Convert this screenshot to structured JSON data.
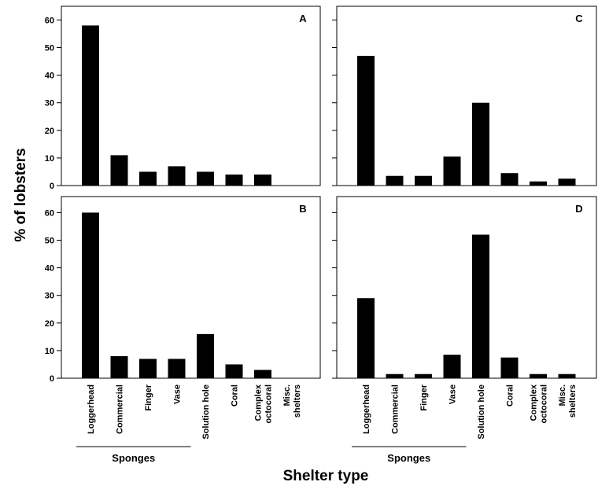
{
  "chart_data": {
    "type": "bar",
    "ylabel": "% of lobsters",
    "xlabel": "Shelter type",
    "categories": [
      "Loggerhead",
      "Commercial",
      "Finger",
      "Vase",
      "Solution hole",
      "Coral",
      "Complex octocoral",
      "Misc. shelters"
    ],
    "category_lines": [
      [
        "Loggerhead"
      ],
      [
        "Commercial"
      ],
      [
        "Finger"
      ],
      [
        "Vase"
      ],
      [
        "Solution hole"
      ],
      [
        "Coral"
      ],
      [
        "Complex",
        "octocoral"
      ],
      [
        "Misc.",
        "shelters"
      ]
    ],
    "group_label": "Sponges",
    "group_categories": [
      "Loggerhead",
      "Commercial",
      "Finger",
      "Vase"
    ],
    "ylim": [
      0,
      65
    ],
    "yticks": [
      0,
      10,
      20,
      30,
      40,
      50,
      60
    ],
    "bar_color": "#000000",
    "panels": [
      {
        "label": "A",
        "values": [
          58,
          11,
          5,
          7,
          5,
          4,
          4,
          0
        ]
      },
      {
        "label": "C",
        "values": [
          47,
          3.5,
          3.5,
          10.5,
          30,
          4.5,
          1.5,
          2.5
        ]
      },
      {
        "label": "B",
        "values": [
          60,
          8,
          7,
          7,
          16,
          5,
          3,
          0
        ]
      },
      {
        "label": "D",
        "values": [
          29,
          1.5,
          1.5,
          8.5,
          52,
          7.5,
          1.5,
          1.5
        ]
      }
    ]
  }
}
